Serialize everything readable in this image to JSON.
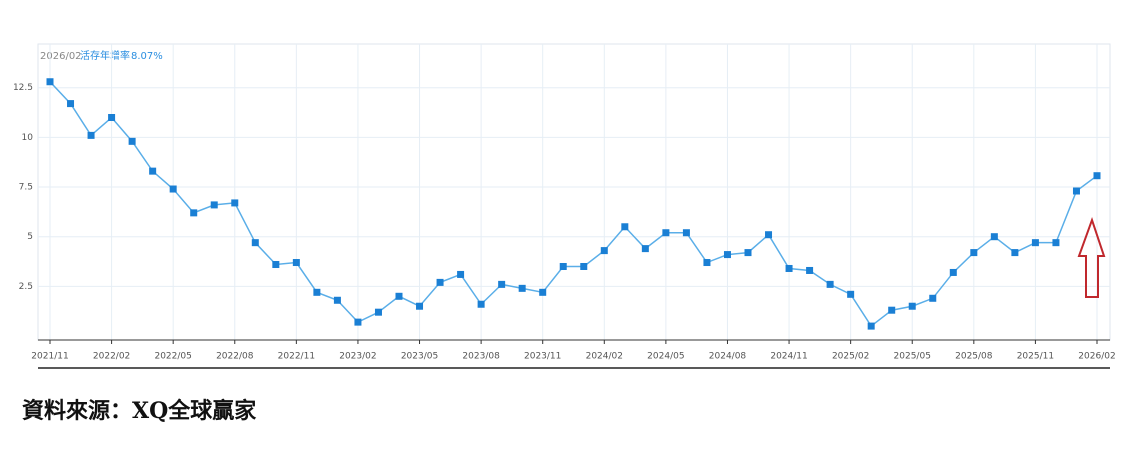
{
  "chart_data": {
    "type": "line",
    "categories": [
      "2021/11",
      null,
      null,
      "2022/02",
      null,
      null,
      "2022/05",
      null,
      null,
      "2022/08",
      null,
      null,
      "2022/11",
      null,
      null,
      "2023/02",
      null,
      null,
      "2023/05",
      null,
      null,
      "2023/08",
      null,
      null,
      "2023/11",
      null,
      null,
      "2024/02",
      null,
      null,
      "2024/05",
      null,
      null,
      "2024/08",
      null,
      null,
      "2024/11",
      null,
      null,
      "2025/02",
      null,
      null,
      "2025/05",
      null,
      null,
      "2025/08",
      null,
      null,
      "2025/11",
      null,
      null,
      "2026/02"
    ],
    "series": [
      {
        "name": "活存年增率",
        "color": "#1a7fd4",
        "values": [
          12.8,
          11.7,
          10.1,
          11.0,
          9.8,
          8.3,
          7.4,
          6.2,
          6.6,
          6.7,
          4.7,
          3.6,
          3.7,
          2.2,
          1.8,
          0.7,
          1.2,
          2.0,
          1.5,
          2.7,
          3.1,
          1.6,
          2.6,
          2.4,
          2.2,
          3.5,
          3.5,
          4.3,
          5.5,
          4.4,
          5.2,
          5.2,
          3.7,
          4.1,
          4.2,
          5.1,
          3.4,
          3.3,
          2.6,
          2.1,
          0.5,
          1.3,
          1.5,
          1.9,
          3.2,
          4.2,
          5.0,
          4.2,
          4.7,
          4.7,
          7.3,
          8.07
        ],
        "value_labels": [
          null,
          null,
          null,
          null,
          null,
          null,
          null,
          null,
          null,
          null,
          null,
          null,
          null,
          null,
          null,
          null,
          null,
          null,
          null,
          null,
          null,
          null,
          null,
          null,
          null,
          null,
          null,
          null,
          null,
          null,
          null,
          null,
          null,
          null,
          null,
          null,
          null,
          null,
          null,
          null,
          null,
          null,
          null,
          null,
          null,
          null,
          null,
          null,
          null,
          null,
          null,
          "8.07%"
        ]
      }
    ],
    "legend_date": "2026/02",
    "ylim": [
      -0.2,
      14.7
    ],
    "yticks": [
      2.5,
      5,
      7.5,
      10,
      12.5
    ],
    "grid": true,
    "source": "資料來源：XQ全球贏家"
  }
}
